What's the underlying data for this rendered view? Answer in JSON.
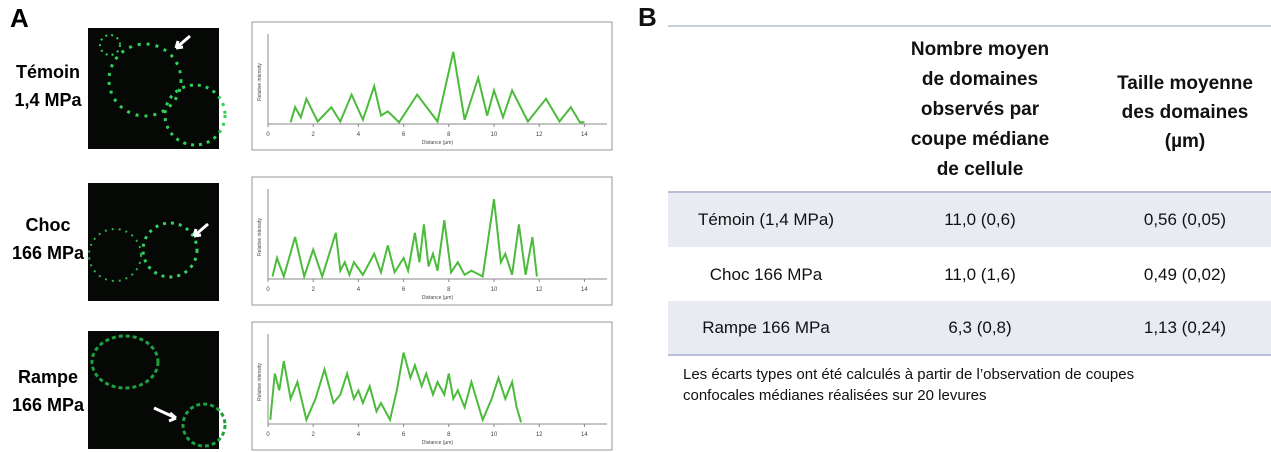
{
  "panel_a": {
    "label": "A",
    "rows": [
      {
        "lines": [
          "Témoin",
          "1,4 MPa"
        ],
        "profile": {
          "type": "line",
          "x_label": "Distance (µm)",
          "y_label": "Relative intensity",
          "color": "#4cbb3c",
          "xlim": [
            0,
            15
          ],
          "xticks": [
            0,
            2,
            4,
            6,
            8,
            10,
            12,
            14
          ],
          "ylim": [
            0,
            1
          ],
          "x": [
            1.0,
            1.2,
            1.45,
            1.7,
            2.2,
            2.8,
            3.2,
            3.7,
            4.2,
            4.7,
            5.0,
            5.3,
            5.8,
            6.6,
            7.5,
            8.2,
            8.7,
            9.3,
            9.7,
            10.0,
            10.4,
            10.8,
            11.5,
            12.3,
            12.9,
            13.4,
            13.8,
            14.0
          ],
          "values": [
            0.02,
            0.2,
            0.08,
            0.3,
            0.03,
            0.2,
            0.03,
            0.35,
            0.05,
            0.45,
            0.1,
            0.15,
            0.02,
            0.35,
            0.03,
            0.86,
            0.05,
            0.55,
            0.1,
            0.4,
            0.08,
            0.4,
            0.03,
            0.3,
            0.03,
            0.2,
            0.02,
            0.02
          ]
        }
      },
      {
        "lines": [
          "Choc",
          "166 MPa"
        ],
        "profile": {
          "type": "line",
          "x_label": "Distance (µm)",
          "y_label": "Relative intensity",
          "color": "#4cbb3c",
          "xlim": [
            0,
            15
          ],
          "xticks": [
            0,
            2,
            4,
            6,
            8,
            10,
            12,
            14
          ],
          "ylim": [
            0,
            1
          ],
          "x": [
            0.2,
            0.4,
            0.7,
            1.2,
            1.6,
            2.0,
            2.4,
            3.0,
            3.2,
            3.4,
            3.6,
            3.8,
            4.2,
            4.7,
            5.0,
            5.3,
            5.6,
            6.0,
            6.2,
            6.5,
            6.7,
            6.9,
            7.1,
            7.3,
            7.5,
            7.8,
            8.1,
            8.4,
            8.7,
            9.0,
            9.5,
            10.0,
            10.3,
            10.5,
            10.8,
            11.1,
            11.4,
            11.7,
            11.9
          ],
          "values": [
            0.03,
            0.25,
            0.03,
            0.5,
            0.03,
            0.35,
            0.03,
            0.55,
            0.1,
            0.2,
            0.05,
            0.2,
            0.05,
            0.3,
            0.08,
            0.4,
            0.08,
            0.25,
            0.1,
            0.55,
            0.2,
            0.65,
            0.15,
            0.3,
            0.1,
            0.7,
            0.08,
            0.2,
            0.05,
            0.1,
            0.03,
            0.95,
            0.2,
            0.3,
            0.05,
            0.65,
            0.05,
            0.5,
            0.03
          ]
        }
      },
      {
        "lines": [
          "Rampe",
          "166 MPa"
        ],
        "profile": {
          "type": "line",
          "x_label": "Distance (µm)",
          "y_label": "Relative intensity",
          "color": "#4cbb3c",
          "xlim": [
            0,
            15
          ],
          "xticks": [
            0,
            2,
            4,
            6,
            8,
            10,
            12,
            14
          ],
          "ylim": [
            0,
            1
          ],
          "x": [
            0.1,
            0.3,
            0.5,
            0.7,
            1.0,
            1.3,
            1.7,
            2.1,
            2.5,
            2.9,
            3.2,
            3.5,
            3.8,
            4.0,
            4.2,
            4.5,
            4.8,
            5.0,
            5.4,
            5.7,
            6.0,
            6.3,
            6.5,
            6.8,
            7.0,
            7.3,
            7.5,
            7.8,
            8.0,
            8.2,
            8.4,
            8.7,
            9.0,
            9.5,
            9.9,
            10.2,
            10.5,
            10.8,
            11.0,
            11.2
          ],
          "values": [
            0.05,
            0.6,
            0.4,
            0.75,
            0.3,
            0.5,
            0.05,
            0.3,
            0.65,
            0.25,
            0.35,
            0.6,
            0.3,
            0.4,
            0.25,
            0.45,
            0.15,
            0.25,
            0.05,
            0.4,
            0.85,
            0.55,
            0.7,
            0.45,
            0.6,
            0.35,
            0.5,
            0.35,
            0.6,
            0.3,
            0.4,
            0.2,
            0.5,
            0.05,
            0.3,
            0.55,
            0.3,
            0.5,
            0.2,
            0.02
          ]
        }
      }
    ]
  },
  "panel_b": {
    "label": "B",
    "header": [
      [
        "Nombre moyen",
        "de domaines",
        "observés par",
        "coupe médiane",
        "de cellule"
      ],
      [
        "Taille moyenne",
        "des domaines",
        "(µm)"
      ]
    ],
    "rows": [
      [
        "Témoin (1,4 MPa)",
        "11,0 (0,6)",
        "0,56 (0,05)"
      ],
      [
        "Choc 166 MPa",
        "11,0 (1,6)",
        "0,49 (0,02)"
      ],
      [
        "Rampe 166 MPa",
        "6,3 (0,8)",
        "1,13 (0,24)"
      ]
    ],
    "note": [
      "Les écarts types ont été calculés à partir de l’observation de coupes",
      "confocales médianes réalisées sur 20 levures"
    ]
  }
}
